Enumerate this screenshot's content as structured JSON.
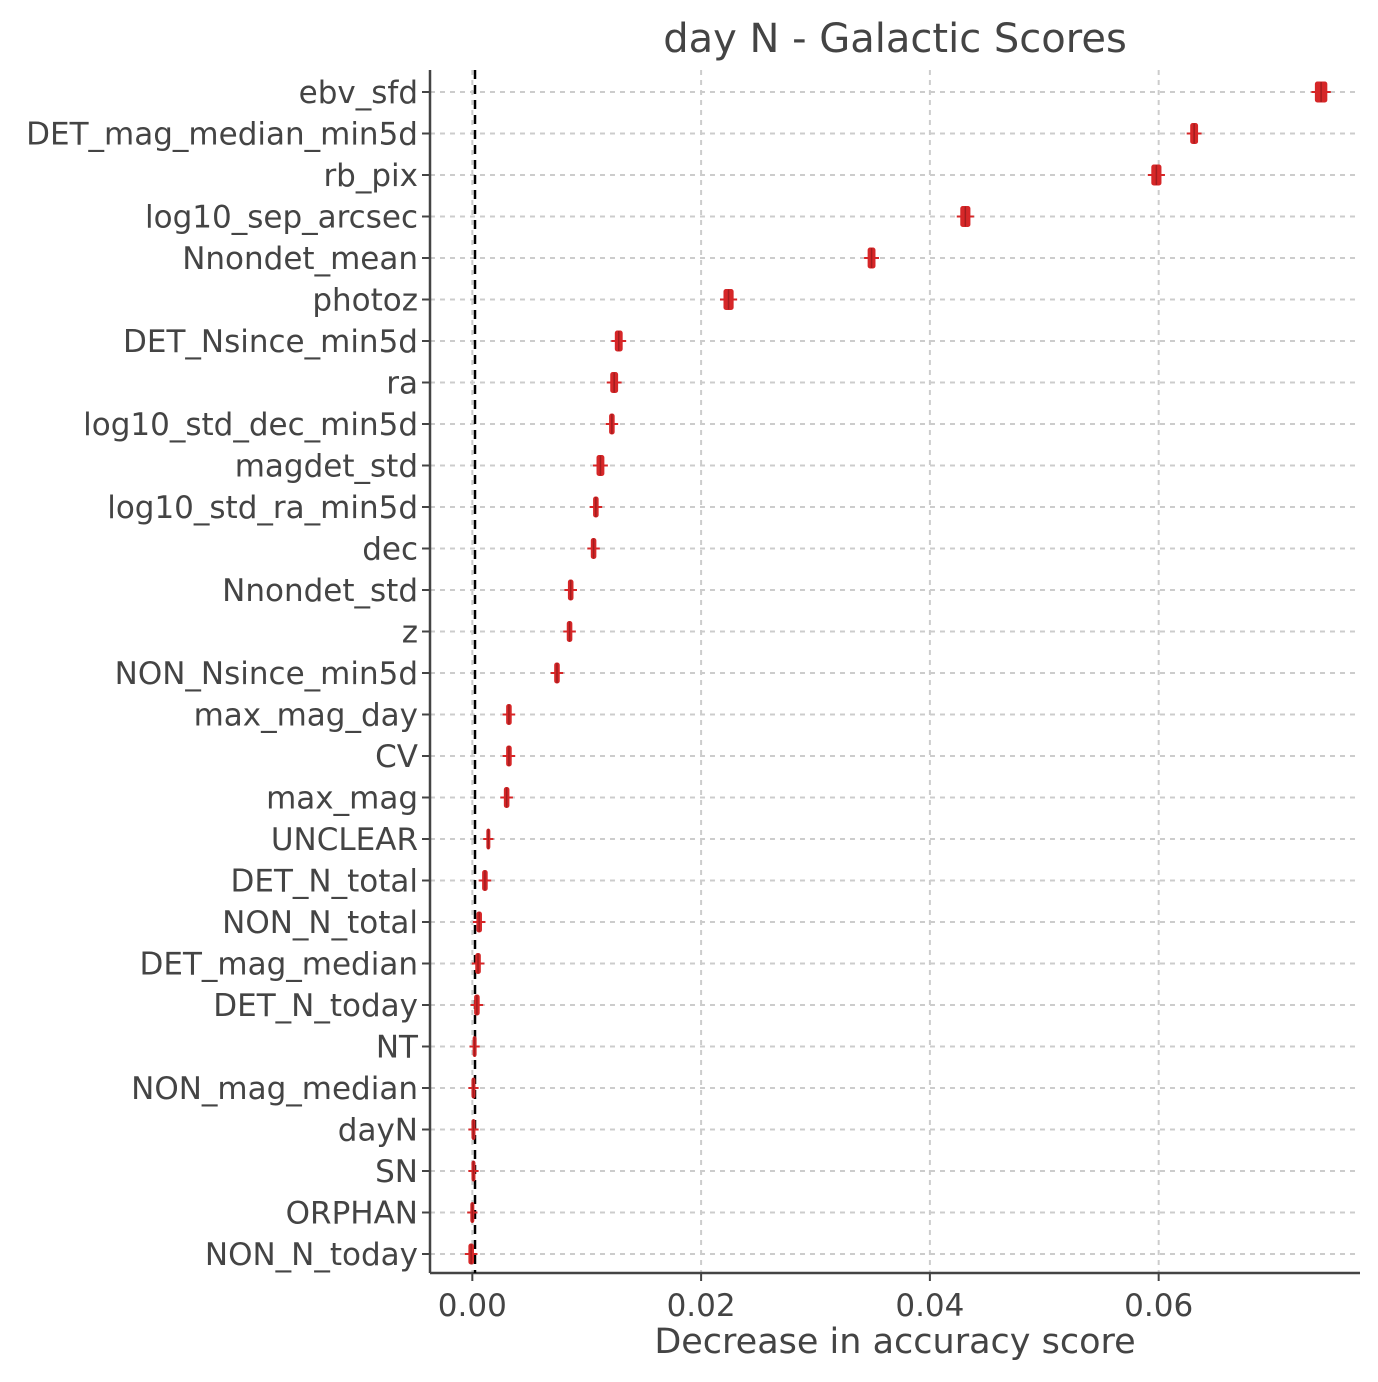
{
  "chart_data": {
    "type": "box",
    "title": "day N - Galactic Scores",
    "xlabel": "Decrease in accuracy score",
    "ylabel": "",
    "xlim": [
      -0.0037,
      0.0776
    ],
    "xticks": [
      0.0,
      0.02,
      0.04,
      0.06
    ],
    "xtick_labels": [
      "0.00",
      "0.02",
      "0.04",
      "0.06"
    ],
    "grid": true,
    "reference_line": {
      "x": 0.0,
      "style": "dashed",
      "color": "#000000"
    },
    "box_color": "#d62728",
    "categories": [
      "ebv_sfd",
      "DET_mag_median_min5d",
      "rb_pix",
      "log10_sep_arcsec",
      "Nnondet_mean",
      "photoz",
      "DET_Nsince_min5d",
      "ra",
      "log10_std_dec_min5d",
      "magdet_std",
      "log10_std_ra_min5d",
      "dec",
      "Nnondet_std",
      "z",
      "NON_Nsince_min5d",
      "max_mag_day",
      "CV",
      "max_mag",
      "UNCLEAR",
      "DET_N_total",
      "NON_N_total",
      "DET_mag_median",
      "DET_N_today",
      "NT",
      "NON_mag_median",
      "dayN",
      "SN",
      "ORPHAN",
      "NON_N_today"
    ],
    "values": [
      0.0742,
      0.0631,
      0.0598,
      0.0431,
      0.0349,
      0.0224,
      0.0128,
      0.0124,
      0.0122,
      0.0112,
      0.0108,
      0.0106,
      0.0086,
      0.0085,
      0.0074,
      0.0032,
      0.0032,
      0.003,
      0.0014,
      0.0011,
      0.0006,
      0.0005,
      0.0004,
      0.0002,
      0.0001,
      0.0001,
      0.0001,
      0.0,
      -0.0001
    ],
    "spread": [
      0.0005,
      0.0003,
      0.0004,
      0.0004,
      0.0003,
      0.0004,
      0.0003,
      0.0003,
      0.0002,
      0.0003,
      0.0002,
      0.0002,
      0.0002,
      0.0002,
      0.0002,
      0.0002,
      0.0002,
      0.0002,
      0.0001,
      0.0002,
      0.0002,
      0.0002,
      0.0002,
      0.0001,
      0.0001,
      0.0001,
      0.0001,
      0.0001,
      0.0002
    ]
  }
}
